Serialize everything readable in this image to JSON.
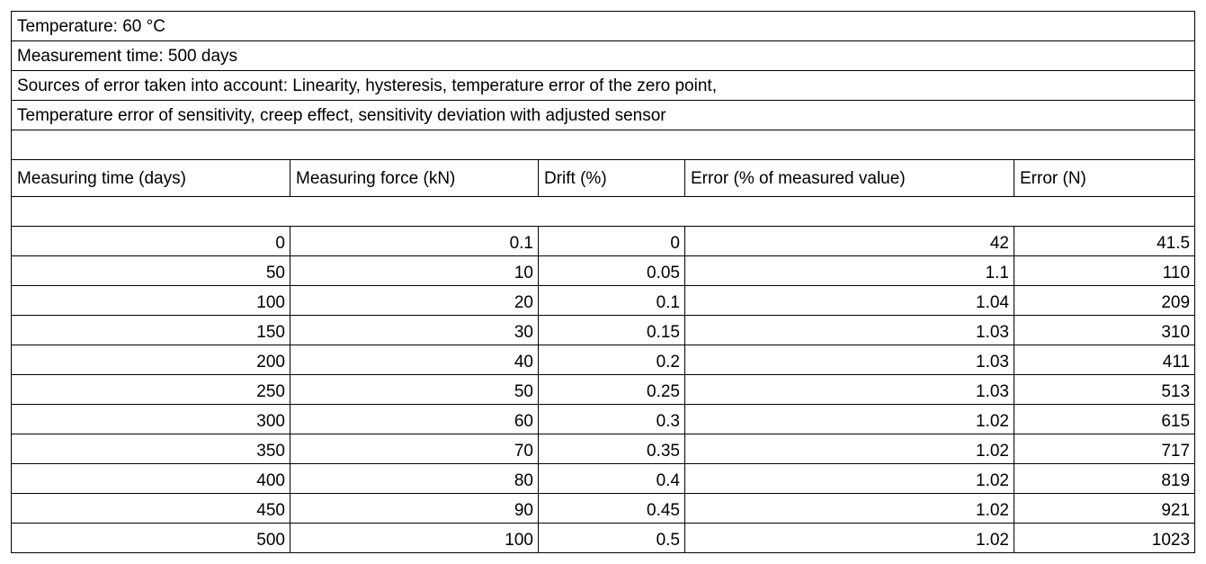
{
  "info": {
    "temperature": "Temperature: 60 °C",
    "measurement_time": "Measurement time: 500 days",
    "sources_line1": "Sources of error taken into account: Linearity, hysteresis, temperature error of the zero point,",
    "sources_line2": "Temperature error of sensitivity, creep effect, sensitivity deviation with adjusted sensor"
  },
  "table": {
    "headers": [
      "Measuring time (days)",
      "Measuring force (kN)",
      "Drift (%)",
      "Error (% of measured value)",
      "Error (N)"
    ],
    "rows": [
      [
        "0",
        "0.1",
        "0",
        "42",
        "41.5"
      ],
      [
        "50",
        "10",
        "0.05",
        "1.1",
        "110"
      ],
      [
        "100",
        "20",
        "0.1",
        "1.04",
        "209"
      ],
      [
        "150",
        "30",
        "0.15",
        "1.03",
        "310"
      ],
      [
        "200",
        "40",
        "0.2",
        "1.03",
        "411"
      ],
      [
        "250",
        "50",
        "0.25",
        "1.03",
        "513"
      ],
      [
        "300",
        "60",
        "0.3",
        "1.02",
        "615"
      ],
      [
        "350",
        "70",
        "0.35",
        "1.02",
        "717"
      ],
      [
        "400",
        "80",
        "0.4",
        "1.02",
        "819"
      ],
      [
        "450",
        "90",
        "0.45",
        "1.02",
        "921"
      ],
      [
        "500",
        "100",
        "0.5",
        "1.02",
        "1023"
      ]
    ]
  }
}
